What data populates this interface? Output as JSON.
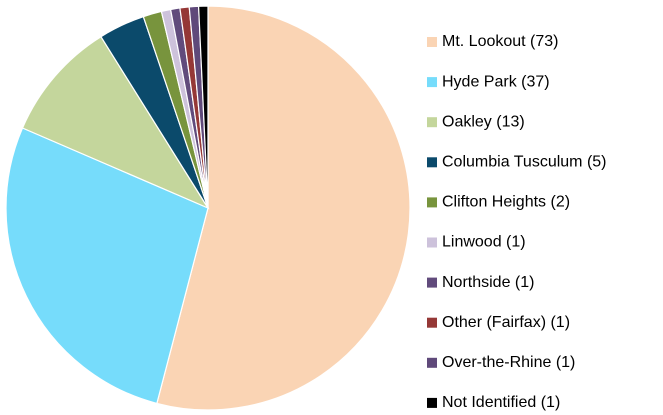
{
  "chart_data": {
    "type": "pie",
    "categories": [
      "Mt. Lookout (73)",
      "Hyde Park (37)",
      "Oakley (13)",
      "Columbia Tusculum (5)",
      "Clifton Heights (2)",
      "Linwood (1)",
      "Northside (1)",
      "Other (Fairfax) (1)",
      "Over-the-Rhine (1)",
      "Not Identified (1)"
    ],
    "values": [
      73,
      37,
      13,
      5,
      2,
      1,
      1,
      1,
      1,
      1
    ],
    "colors": [
      "#fad4b4",
      "#76dcfb",
      "#c4d69c",
      "#0b4a6b",
      "#78943d",
      "#cdc2db",
      "#614b7c",
      "#953836",
      "#5f497a",
      "#000000"
    ],
    "legend": "right"
  }
}
